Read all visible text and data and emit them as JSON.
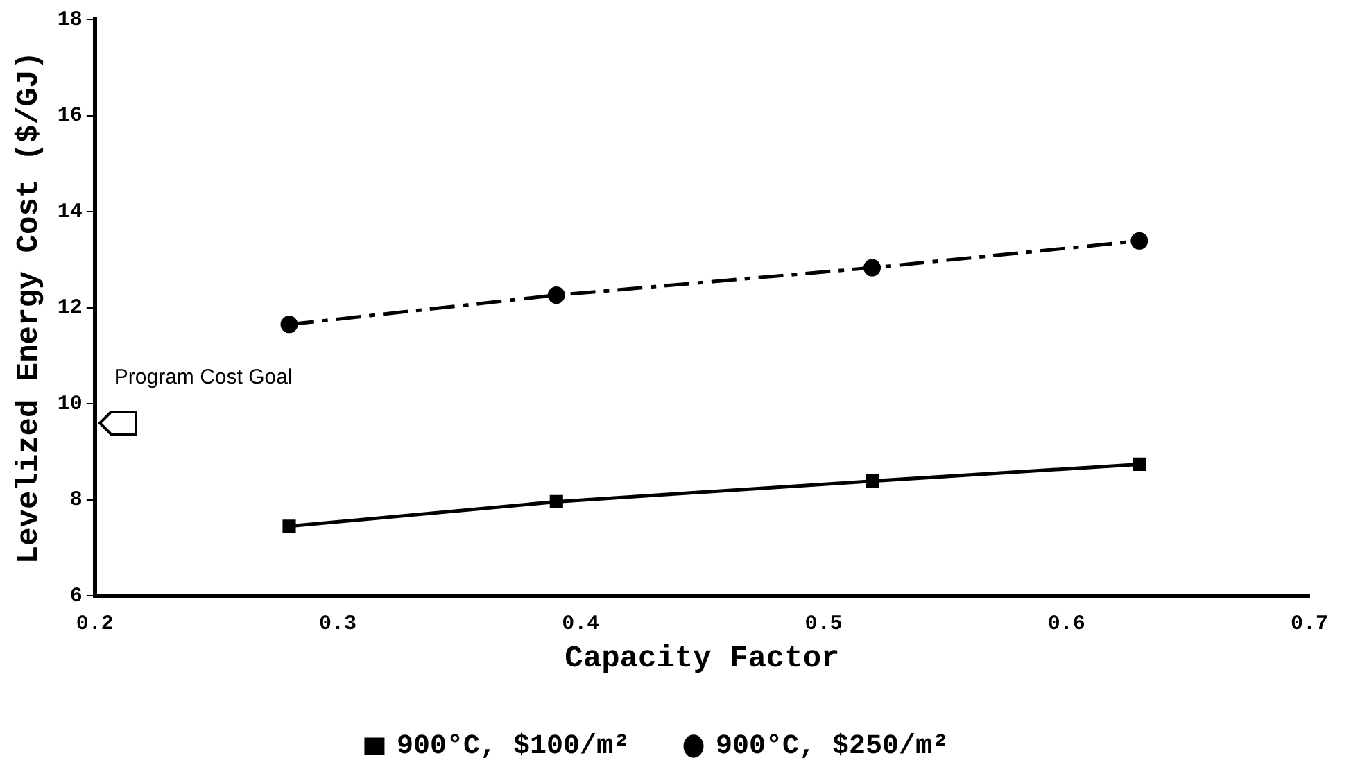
{
  "chart_data": {
    "type": "line",
    "xlabel": "Capacity Factor",
    "ylabel": "Levelized Energy Cost ($/GJ)",
    "xlim": [
      0.2,
      0.7
    ],
    "xticks": [
      0.2,
      0.3,
      0.4,
      0.5,
      0.6,
      0.7
    ],
    "ylim": [
      6,
      18
    ],
    "yticks": [
      6,
      8,
      10,
      12,
      14,
      16,
      18
    ],
    "grid": false,
    "legend": "bottom",
    "series": [
      {
        "name": "900°C, $100/m²",
        "color": "#000000",
        "marker": "square",
        "line_style": "solid",
        "x": [
          0.28,
          0.39,
          0.52,
          0.63
        ],
        "values": [
          7.45,
          7.96,
          8.39,
          8.74
        ]
      },
      {
        "name": "900°C, $250/m²",
        "color": "#000000",
        "marker": "circle",
        "line_style": "dashed",
        "x": [
          0.28,
          0.39,
          0.52,
          0.63
        ],
        "values": [
          11.65,
          12.26,
          12.83,
          13.39
        ]
      }
    ],
    "annotations": [
      "Program Cost Goal"
    ]
  }
}
